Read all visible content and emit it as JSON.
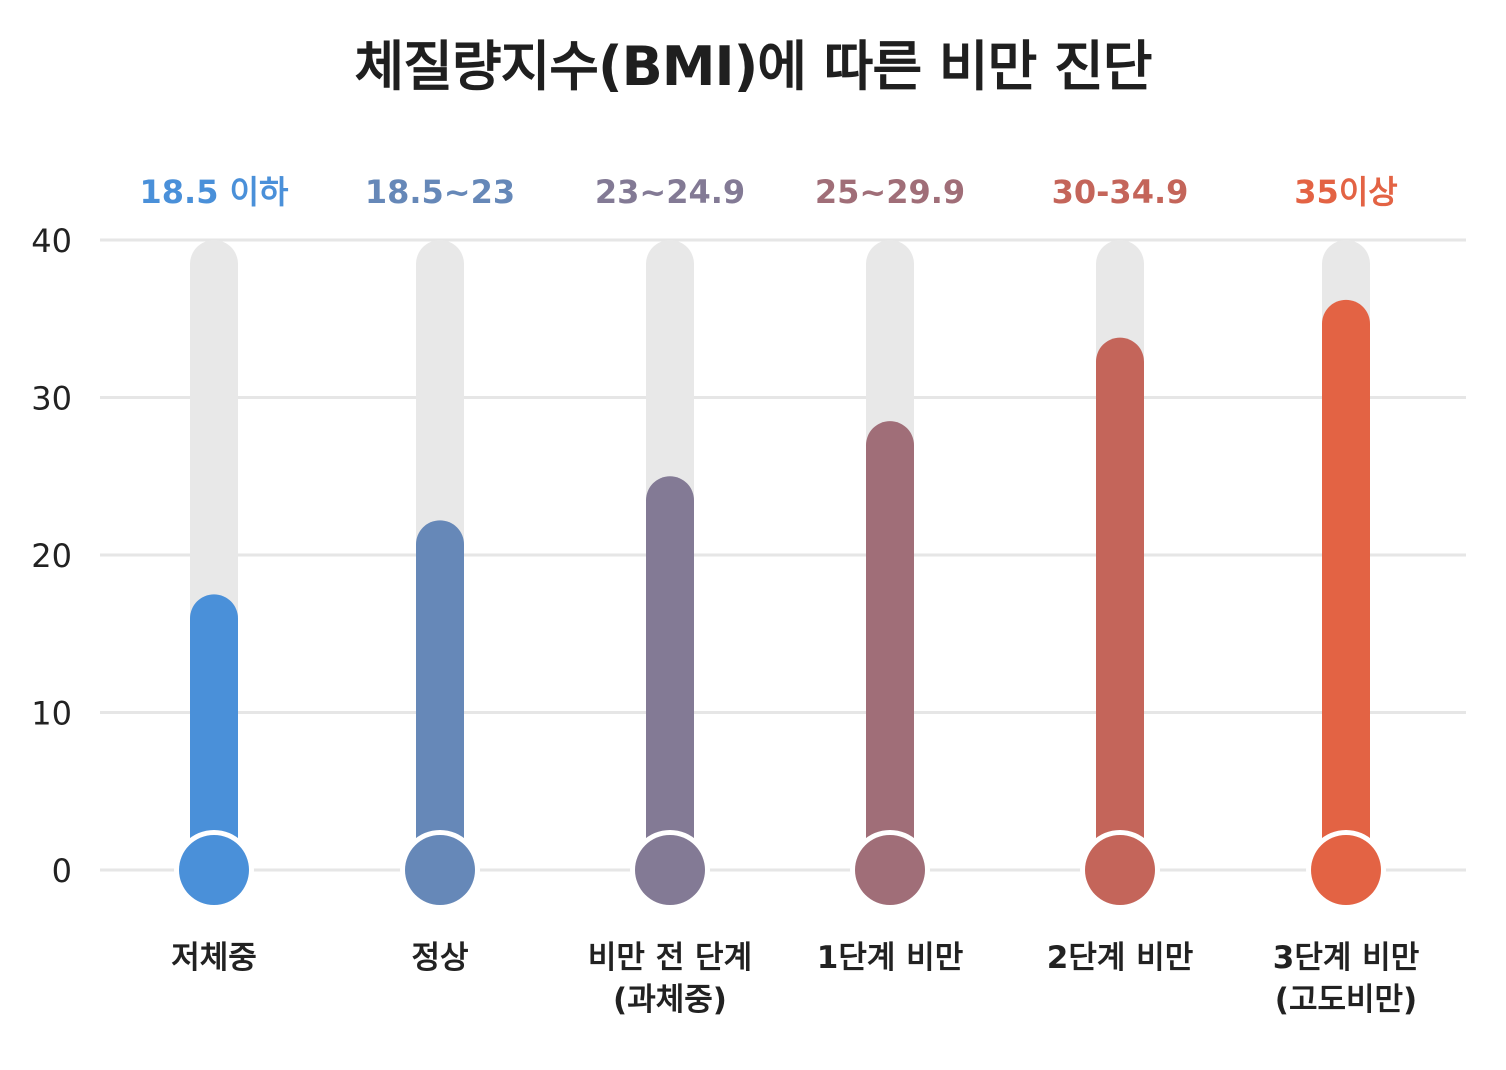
{
  "chart_data": {
    "type": "bar",
    "title": "체질량지수(BMI)에 따른 비만 진단",
    "ylim": [
      0,
      40
    ],
    "yticks": [
      "0",
      "10",
      "20",
      "30",
      "40"
    ],
    "grid": true,
    "bar_style": "thermometer",
    "track_color": "#e8e8e8",
    "categories": [
      {
        "label": [
          "저체중"
        ],
        "range_label": "18.5 이하",
        "value": 17.5,
        "color": "#4a90d9",
        "label_color": "#4a90d9"
      },
      {
        "label": [
          "정상"
        ],
        "range_label": "18.5~23",
        "value": 22.2,
        "color": "#6688b8",
        "label_color": "#6688b8"
      },
      {
        "label": [
          "비만 전 단계",
          "(과체중)"
        ],
        "range_label": "23~24.9",
        "value": 25.0,
        "color": "#837a95",
        "label_color": "#837a95"
      },
      {
        "label": [
          "1단계 비만"
        ],
        "range_label": "25~29.9",
        "value": 28.5,
        "color": "#a06e78",
        "label_color": "#a06e78"
      },
      {
        "label": [
          "2단계 비만"
        ],
        "range_label": "30-34.9",
        "value": 33.8,
        "color": "#c4655a",
        "label_color": "#c4655a"
      },
      {
        "label": [
          "3단계 비만",
          "(고도비만)"
        ],
        "range_label": "35이상",
        "value": 36.2,
        "color": "#e36344",
        "label_color": "#e36344"
      }
    ]
  }
}
